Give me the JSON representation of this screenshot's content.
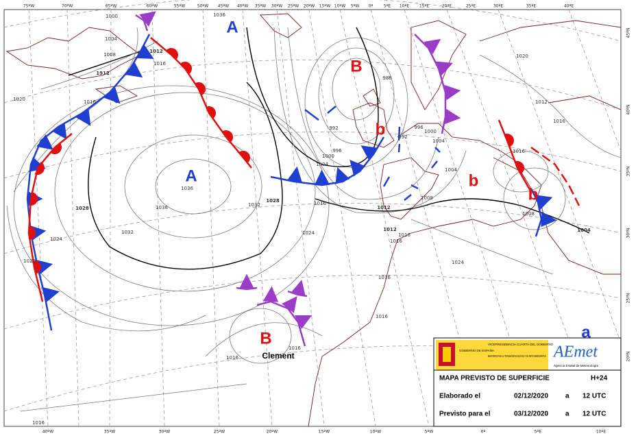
{
  "map": {
    "lon_top": [
      "75ºW",
      "70ºW",
      "65ºW",
      "60ºW",
      "55ºW",
      "50ºW",
      "45ºW",
      "40ºW",
      "35ºW",
      "30ºW",
      "25ºW",
      "20ºW",
      "15ºW",
      "10ºW",
      "5ºW",
      "0º",
      "5ºE",
      "10ºE",
      "15ºE",
      "20ºE",
      "25ºE",
      "30ºE",
      "35ºE",
      "40ºE"
    ],
    "lon_bottom": [
      "40ºW",
      "35ºW",
      "30ºW",
      "25ºW",
      "20ºW",
      "15ºW",
      "10ºW",
      "5ºW",
      "0º",
      "5ºE",
      "10ºE"
    ],
    "lat_right": [
      "45ºN",
      "40ºN",
      "35ºN",
      "30ºN",
      "25ºN",
      "20ºN"
    ],
    "isobar_labels": [
      "1000",
      "1004",
      "1008",
      "1912",
      "1012",
      "1016",
      "1020",
      "1016",
      "1036",
      "1036",
      "1036",
      "1028",
      "1032",
      "1024",
      "1020",
      "1032",
      "1028",
      "1024",
      "1016",
      "1004",
      "1000",
      "996",
      "992",
      "988",
      "996",
      "992",
      "1000",
      "1004",
      "1004",
      "1008",
      "1012",
      "1012",
      "1016",
      "1016",
      "1016",
      "1016",
      "1016",
      "1008",
      "1004",
      "1012",
      "1016",
      "1020",
      "1024",
      "1016",
      "1016",
      "1016"
    ],
    "centers": [
      "A",
      "A",
      "B",
      "b",
      "b",
      "b",
      "B",
      "a"
    ],
    "storm_name": "Clement"
  },
  "info": {
    "gov": "GOBIERNO DE ESPAÑA",
    "vice": "VICEPRESIDENCIA CUARTA DEL GOBIERNO",
    "ministry": "MINISTERIO PARA LA TRANSICIÓN ECOLÓGICA Y EL RETO DEMOGRÁFICO",
    "brand": "AEmet",
    "agency": "Agencia Estatal de Meteorología",
    "title": "MAPA PREVISTO DE SUPERFICIE",
    "lead": "H+24",
    "made_label": "Elaborado el",
    "made_date": "02/12/2020",
    "made_at": "a",
    "made_time": "12 UTC",
    "valid_label": "Previsto para el",
    "valid_date": "03/12/2020",
    "valid_at": "a",
    "valid_time": "12 UTC"
  }
}
